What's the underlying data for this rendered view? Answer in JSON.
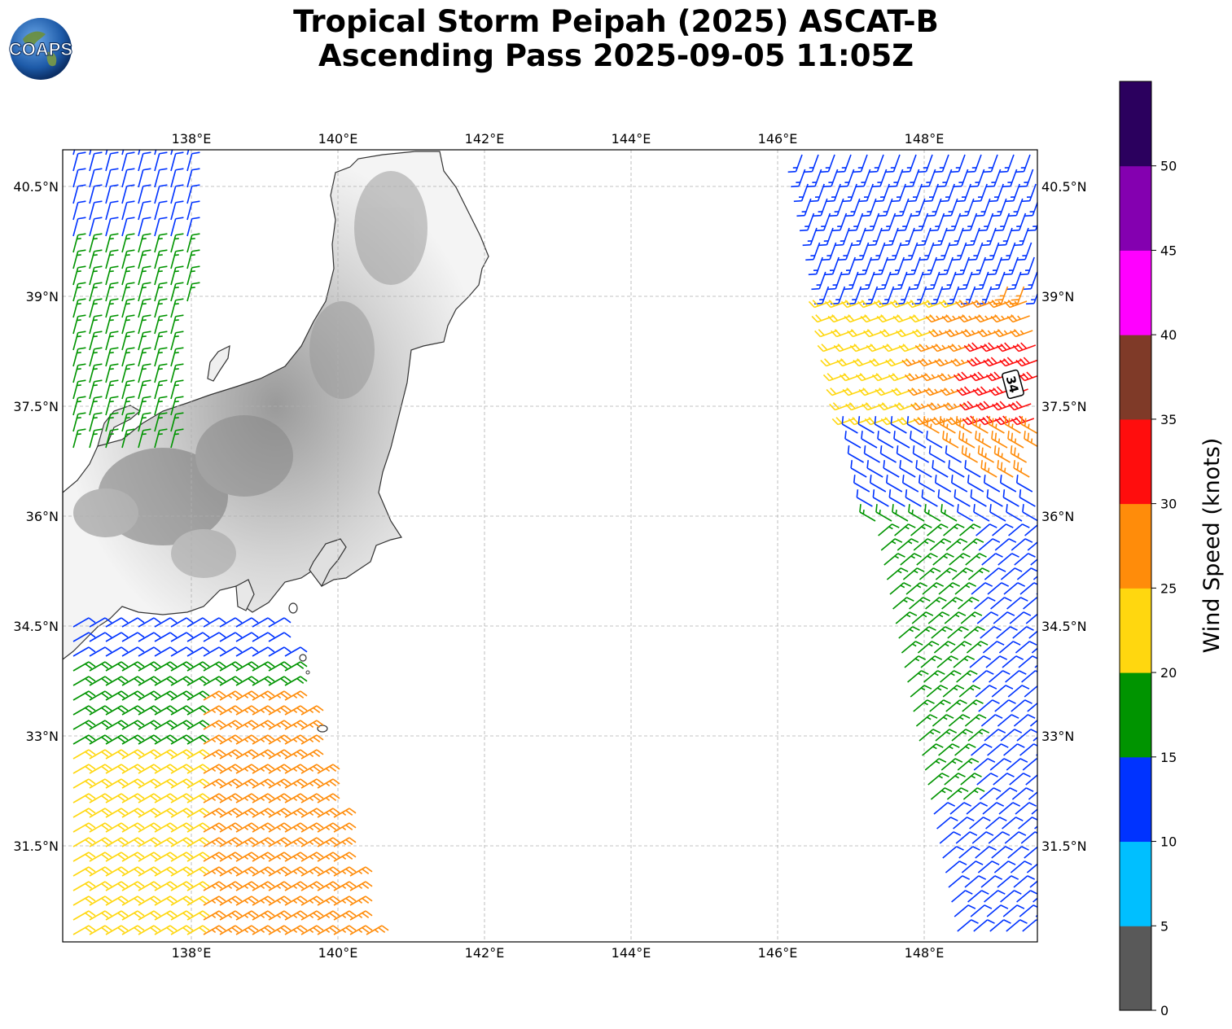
{
  "title": {
    "line1": "Tropical Storm Peipah (2025) ASCAT-B",
    "line2": "Ascending Pass 2025-09-05 11:05Z"
  },
  "logo": {
    "text": "COAPS"
  },
  "map": {
    "lon_ticks": [
      "138°E",
      "140°E",
      "142°E",
      "144°E",
      "146°E",
      "148°E"
    ],
    "lat_ticks": [
      "40.5°N",
      "39°N",
      "37.5°N",
      "36°N",
      "34.5°N",
      "33°N",
      "31.5°N"
    ],
    "storm_marker": "34"
  },
  "colorbar": {
    "label": "Wind Speed (knots)",
    "ticks": [
      "0",
      "5",
      "10",
      "15",
      "20",
      "25",
      "30",
      "35",
      "40",
      "45",
      "50"
    ],
    "colors": [
      "#595959",
      "#00bfff",
      "#0033ff",
      "#009400",
      "#ffd70f",
      "#ff8c0a",
      "#ff0d0d",
      "#7f3a28",
      "#ff00ff",
      "#8400b0",
      "#2b005e"
    ]
  }
}
